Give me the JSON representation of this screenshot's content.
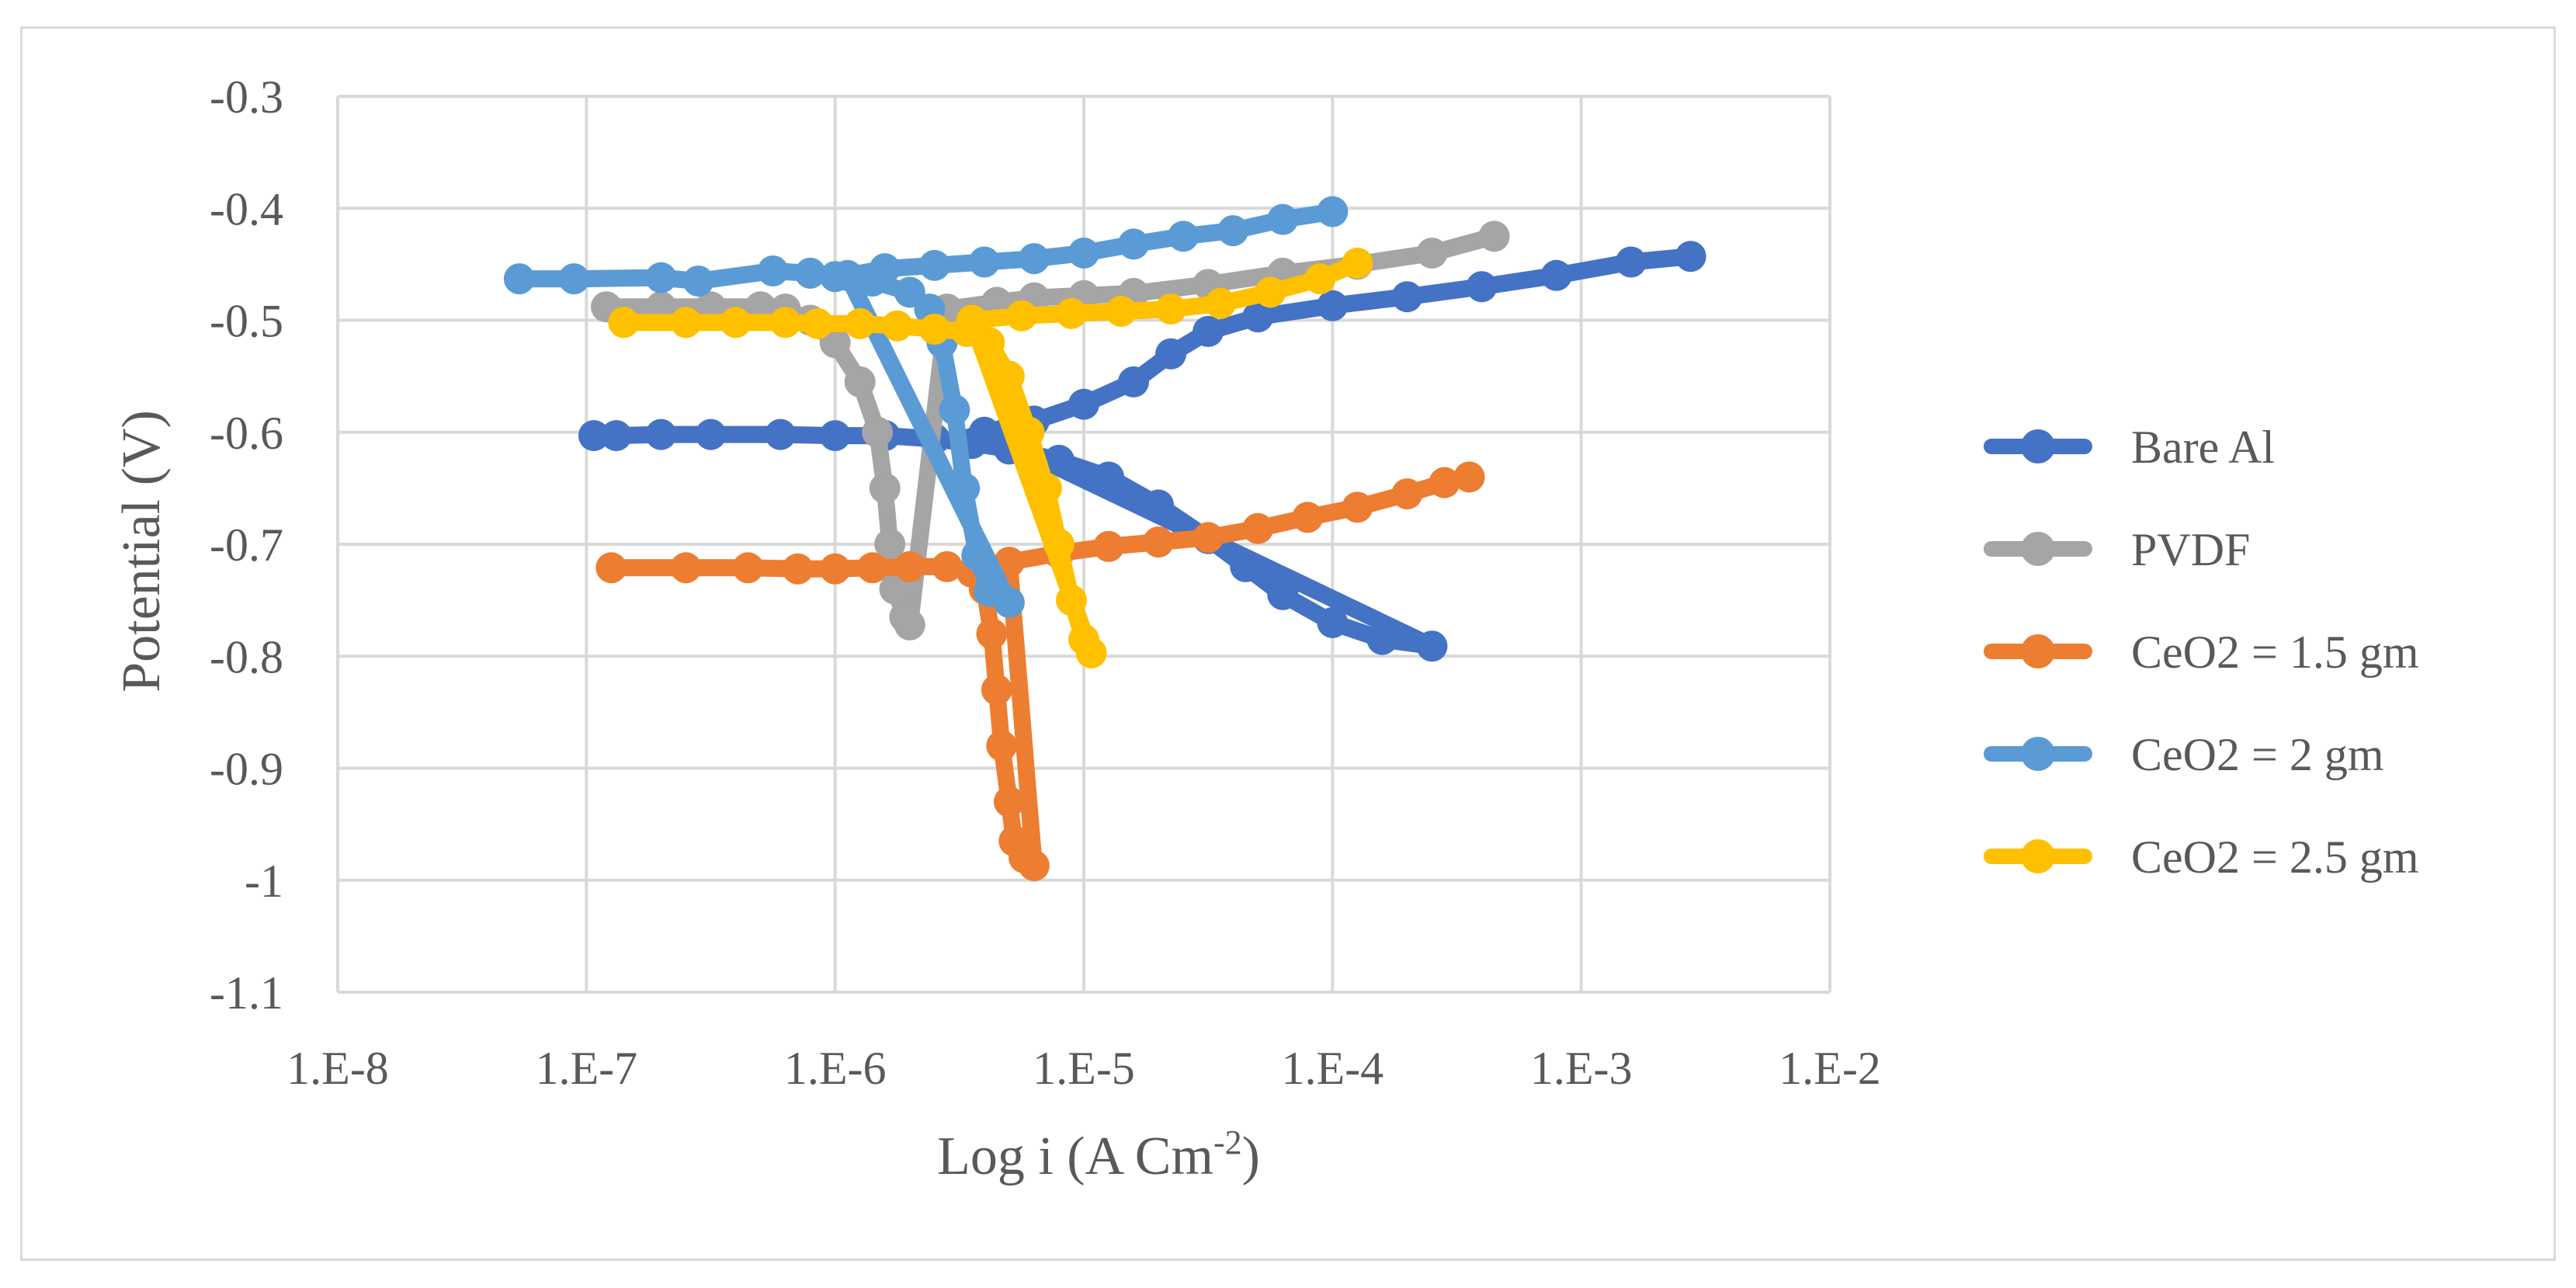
{
  "chart_data": {
    "type": "scatter",
    "title": "",
    "xlabel": "Log i (A Cm",
    "xlabel_sup": "-2",
    "xlabel_close": ")",
    "ylabel": "Potential (V)",
    "x_scale": "log10",
    "xlim_exp": [
      -8,
      -2
    ],
    "ylim": [
      -1.1,
      -0.3
    ],
    "x_ticks_exp": [
      -8,
      -7,
      -6,
      -5,
      -4,
      -3,
      -2
    ],
    "x_tick_labels": [
      "1.E-8",
      "1.E-7",
      "1.E-6",
      "1.E-5",
      "1.E-4",
      "1.E-3",
      "1.E-2"
    ],
    "y_ticks": [
      -0.3,
      -0.4,
      -0.5,
      -0.6,
      -0.7,
      -0.8,
      -0.9,
      -1.0,
      -1.1
    ],
    "y_tick_labels": [
      "-0.3",
      "-0.4",
      "-0.5",
      "-0.6",
      "-0.7",
      "-0.8",
      "-0.9",
      "-1",
      "-1.1"
    ],
    "grid": true,
    "legend_position": "right",
    "series": [
      {
        "name": "Bare Al",
        "color": "#4472c4",
        "points": [
          [
            -6.97,
            -0.603
          ],
          [
            -6.88,
            -0.603
          ],
          [
            -6.7,
            -0.602
          ],
          [
            -6.5,
            -0.602
          ],
          [
            -6.22,
            -0.602
          ],
          [
            -6.0,
            -0.603
          ],
          [
            -5.8,
            -0.603
          ],
          [
            -5.6,
            -0.606
          ],
          [
            -5.45,
            -0.61
          ],
          [
            -5.3,
            -0.615
          ],
          [
            -5.1,
            -0.625
          ],
          [
            -4.9,
            -0.64
          ],
          [
            -4.7,
            -0.665
          ],
          [
            -4.5,
            -0.695
          ],
          [
            -4.35,
            -0.72
          ],
          [
            -4.2,
            -0.745
          ],
          [
            -4.0,
            -0.77
          ],
          [
            -3.8,
            -0.785
          ],
          [
            -3.6,
            -0.791
          ],
          [
            -5.4,
            -0.6
          ],
          [
            -5.2,
            -0.59
          ],
          [
            -5.0,
            -0.575
          ],
          [
            -4.8,
            -0.555
          ],
          [
            -4.65,
            -0.53
          ],
          [
            -4.5,
            -0.51
          ],
          [
            -4.3,
            -0.497
          ],
          [
            -4.0,
            -0.487
          ],
          [
            -3.7,
            -0.479
          ],
          [
            -3.4,
            -0.47
          ],
          [
            -3.1,
            -0.46
          ],
          [
            -2.8,
            -0.448
          ],
          [
            -2.56,
            -0.443
          ]
        ]
      },
      {
        "name": "PVDF",
        "color": "#a5a5a5",
        "points": [
          [
            -6.92,
            -0.488
          ],
          [
            -6.7,
            -0.488
          ],
          [
            -6.5,
            -0.488
          ],
          [
            -6.3,
            -0.488
          ],
          [
            -6.2,
            -0.49
          ],
          [
            -6.1,
            -0.5
          ],
          [
            -6.0,
            -0.52
          ],
          [
            -5.9,
            -0.555
          ],
          [
            -5.83,
            -0.6
          ],
          [
            -5.8,
            -0.65
          ],
          [
            -5.78,
            -0.7
          ],
          [
            -5.76,
            -0.74
          ],
          [
            -5.72,
            -0.765
          ],
          [
            -5.7,
            -0.772
          ],
          [
            -5.55,
            -0.49
          ],
          [
            -5.35,
            -0.484
          ],
          [
            -5.2,
            -0.48
          ],
          [
            -5.0,
            -0.478
          ],
          [
            -4.8,
            -0.476
          ],
          [
            -4.5,
            -0.468
          ],
          [
            -4.2,
            -0.458
          ],
          [
            -3.9,
            -0.45
          ],
          [
            -3.6,
            -0.44
          ],
          [
            -3.35,
            -0.425
          ]
        ]
      },
      {
        "name": "CeO2 = 1.5 gm",
        "color": "#ed7d31",
        "points": [
          [
            -6.9,
            -0.721
          ],
          [
            -6.6,
            -0.721
          ],
          [
            -6.35,
            -0.721
          ],
          [
            -6.15,
            -0.722
          ],
          [
            -6.0,
            -0.722
          ],
          [
            -5.85,
            -0.721
          ],
          [
            -5.7,
            -0.72
          ],
          [
            -5.55,
            -0.72
          ],
          [
            -5.45,
            -0.725
          ],
          [
            -5.4,
            -0.74
          ],
          [
            -5.37,
            -0.78
          ],
          [
            -5.35,
            -0.83
          ],
          [
            -5.33,
            -0.88
          ],
          [
            -5.3,
            -0.93
          ],
          [
            -5.28,
            -0.965
          ],
          [
            -5.24,
            -0.98
          ],
          [
            -5.2,
            -0.987
          ],
          [
            -5.3,
            -0.716
          ],
          [
            -5.1,
            -0.708
          ],
          [
            -4.9,
            -0.702
          ],
          [
            -4.7,
            -0.698
          ],
          [
            -4.5,
            -0.694
          ],
          [
            -4.3,
            -0.686
          ],
          [
            -4.1,
            -0.676
          ],
          [
            -3.9,
            -0.667
          ],
          [
            -3.7,
            -0.655
          ],
          [
            -3.55,
            -0.645
          ],
          [
            -3.45,
            -0.64
          ]
        ]
      },
      {
        "name": "CeO2 = 2 gm",
        "color": "#5b9bd5",
        "points": [
          [
            -7.27,
            -0.463
          ],
          [
            -7.05,
            -0.463
          ],
          [
            -6.7,
            -0.462
          ],
          [
            -6.55,
            -0.465
          ],
          [
            -6.25,
            -0.456
          ],
          [
            -6.1,
            -0.458
          ],
          [
            -6.0,
            -0.461
          ],
          [
            -5.85,
            -0.465
          ],
          [
            -5.7,
            -0.475
          ],
          [
            -5.62,
            -0.49
          ],
          [
            -5.57,
            -0.52
          ],
          [
            -5.52,
            -0.58
          ],
          [
            -5.48,
            -0.65
          ],
          [
            -5.43,
            -0.71
          ],
          [
            -5.38,
            -0.742
          ],
          [
            -5.3,
            -0.752
          ],
          [
            -5.95,
            -0.46
          ],
          [
            -5.8,
            -0.454
          ],
          [
            -5.6,
            -0.451
          ],
          [
            -5.4,
            -0.448
          ],
          [
            -5.2,
            -0.445
          ],
          [
            -5.0,
            -0.44
          ],
          [
            -4.8,
            -0.432
          ],
          [
            -4.6,
            -0.425
          ],
          [
            -4.4,
            -0.42
          ],
          [
            -4.2,
            -0.41
          ],
          [
            -4.0,
            -0.403
          ]
        ]
      },
      {
        "name": "CeO2 = 2.5 gm",
        "color": "#ffc000",
        "points": [
          [
            -6.85,
            -0.502
          ],
          [
            -6.6,
            -0.502
          ],
          [
            -6.4,
            -0.502
          ],
          [
            -6.2,
            -0.502
          ],
          [
            -6.07,
            -0.503
          ],
          [
            -5.9,
            -0.503
          ],
          [
            -5.75,
            -0.505
          ],
          [
            -5.6,
            -0.508
          ],
          [
            -5.47,
            -0.51
          ],
          [
            -5.38,
            -0.52
          ],
          [
            -5.3,
            -0.55
          ],
          [
            -5.22,
            -0.6
          ],
          [
            -5.15,
            -0.65
          ],
          [
            -5.1,
            -0.7
          ],
          [
            -5.05,
            -0.75
          ],
          [
            -5.0,
            -0.785
          ],
          [
            -4.97,
            -0.797
          ],
          [
            -5.45,
            -0.5
          ],
          [
            -5.25,
            -0.496
          ],
          [
            -5.05,
            -0.494
          ],
          [
            -4.85,
            -0.492
          ],
          [
            -4.65,
            -0.49
          ],
          [
            -4.45,
            -0.485
          ],
          [
            -4.25,
            -0.475
          ],
          [
            -4.05,
            -0.463
          ],
          [
            -3.9,
            -0.449
          ]
        ]
      }
    ]
  }
}
